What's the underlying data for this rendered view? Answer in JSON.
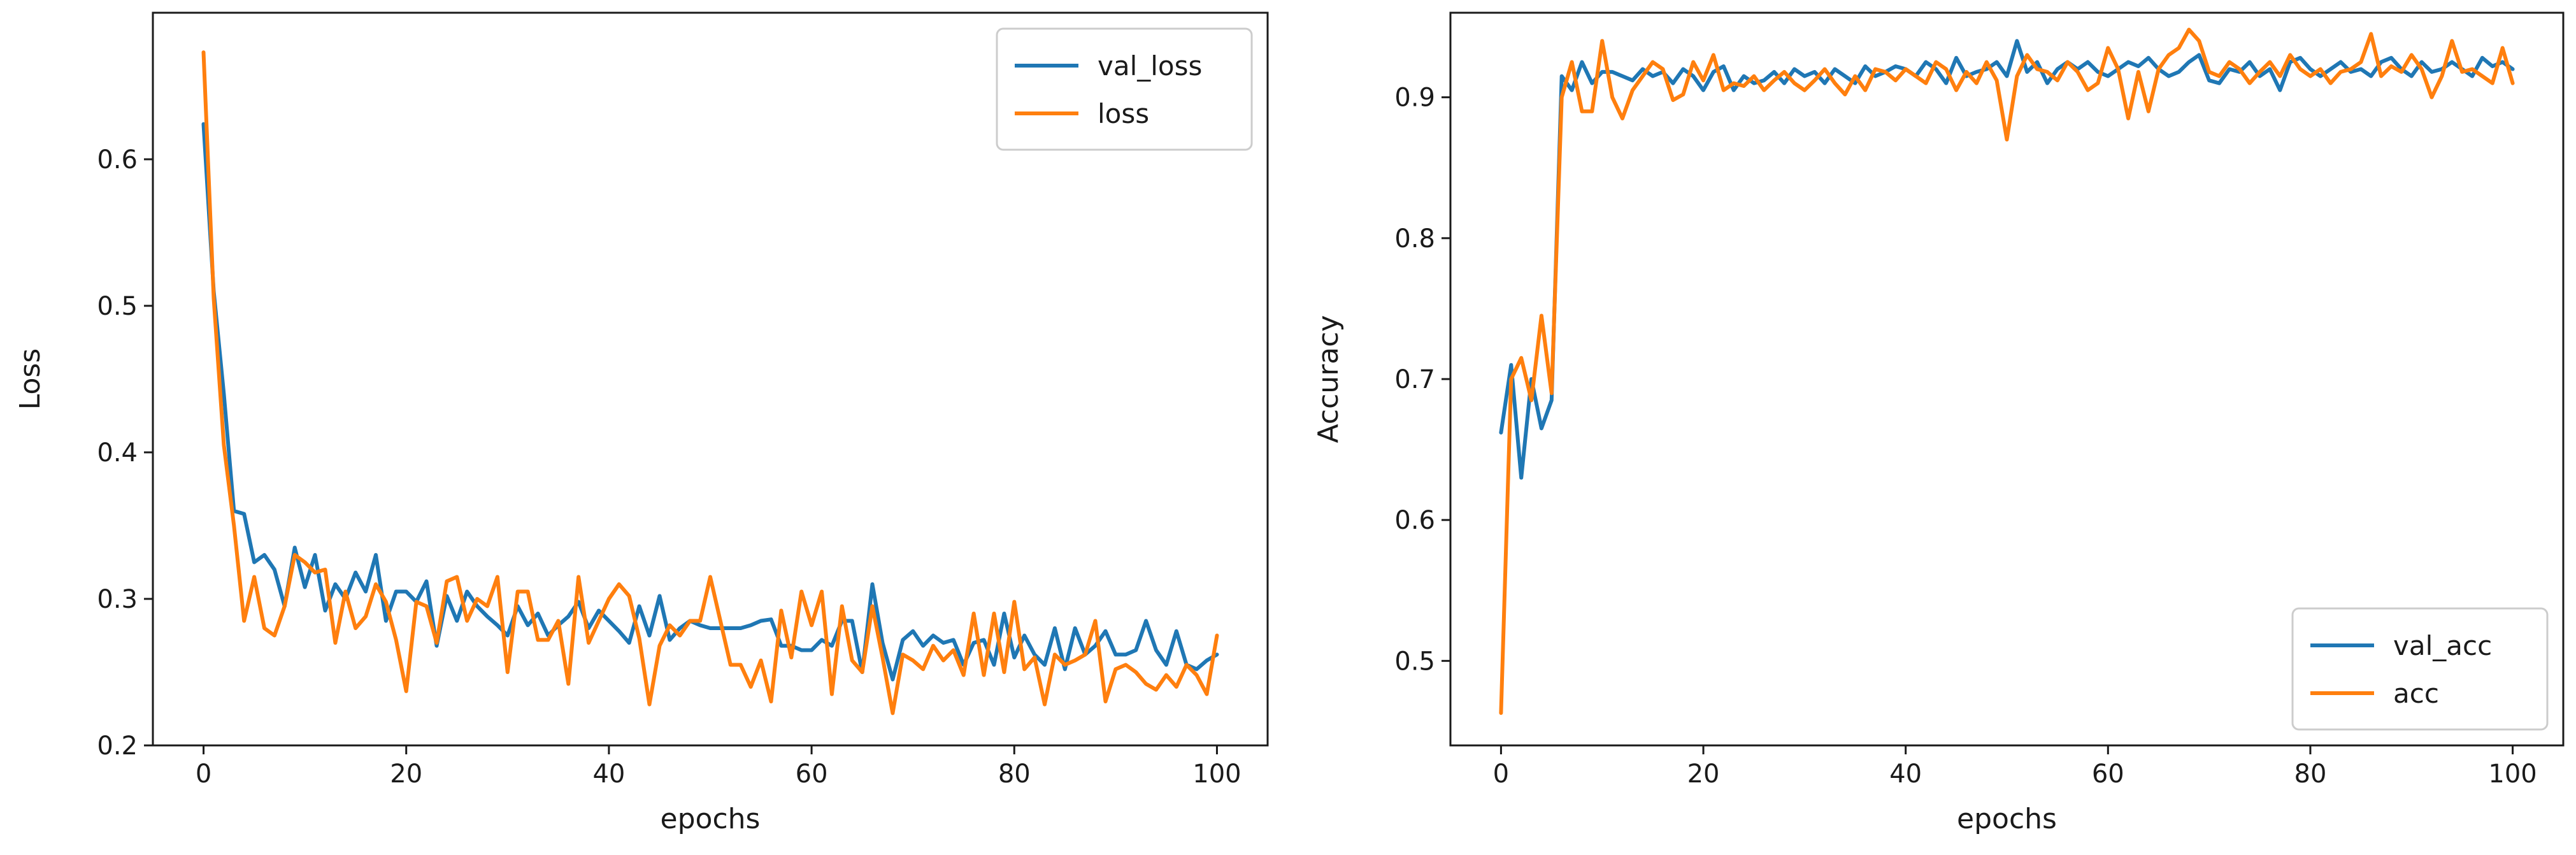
{
  "colors": {
    "blue": "#1f77b4",
    "orange": "#ff7f0e",
    "axis": "#1a1a1a"
  },
  "chart_data": [
    {
      "type": "line",
      "title": "",
      "xlabel": "epochs",
      "ylabel": "Loss",
      "xlim": [
        -5,
        105
      ],
      "ylim": [
        0.2,
        0.7
      ],
      "xticks": [
        0,
        20,
        40,
        60,
        80,
        100
      ],
      "xtick_labels": [
        "0",
        "20",
        "40",
        "60",
        "80",
        "100"
      ],
      "yticks": [
        0.2,
        0.3,
        0.4,
        0.5,
        0.6
      ],
      "ytick_labels": [
        "0.2",
        "0.3",
        "0.4",
        "0.5",
        "0.6"
      ],
      "legend_position": "top-right",
      "series": [
        {
          "name": "val_loss",
          "color": "#1f77b4",
          "values": [
            0.624,
            0.51,
            0.44,
            0.36,
            0.358,
            0.325,
            0.33,
            0.32,
            0.295,
            0.335,
            0.308,
            0.33,
            0.292,
            0.31,
            0.3,
            0.318,
            0.305,
            0.33,
            0.285,
            0.305,
            0.305,
            0.298,
            0.312,
            0.268,
            0.302,
            0.285,
            0.305,
            0.295,
            0.288,
            0.282,
            0.275,
            0.295,
            0.282,
            0.29,
            0.275,
            0.282,
            0.288,
            0.298,
            0.28,
            0.292,
            0.285,
            0.278,
            0.27,
            0.295,
            0.275,
            0.302,
            0.272,
            0.28,
            0.285,
            0.282,
            0.28,
            0.28,
            0.28,
            0.28,
            0.282,
            0.285,
            0.286,
            0.268,
            0.268,
            0.265,
            0.265,
            0.272,
            0.268,
            0.285,
            0.285,
            0.25,
            0.31,
            0.27,
            0.245,
            0.272,
            0.278,
            0.268,
            0.275,
            0.27,
            0.272,
            0.255,
            0.27,
            0.272,
            0.255,
            0.29,
            0.26,
            0.275,
            0.262,
            0.255,
            0.28,
            0.252,
            0.28,
            0.262,
            0.268,
            0.278,
            0.262,
            0.262,
            0.265,
            0.285,
            0.265,
            0.255,
            0.278,
            0.255,
            0.252,
            0.258,
            0.262
          ]
        },
        {
          "name": "loss",
          "color": "#ff7f0e",
          "values": [
            0.673,
            0.505,
            0.405,
            0.35,
            0.285,
            0.315,
            0.28,
            0.275,
            0.295,
            0.33,
            0.325,
            0.318,
            0.32,
            0.27,
            0.305,
            0.28,
            0.288,
            0.31,
            0.298,
            0.272,
            0.237,
            0.298,
            0.295,
            0.27,
            0.312,
            0.315,
            0.285,
            0.3,
            0.295,
            0.315,
            0.25,
            0.305,
            0.305,
            0.272,
            0.272,
            0.285,
            0.242,
            0.315,
            0.27,
            0.285,
            0.3,
            0.31,
            0.302,
            0.273,
            0.228,
            0.268,
            0.282,
            0.275,
            0.285,
            0.285,
            0.315,
            0.285,
            0.255,
            0.255,
            0.24,
            0.258,
            0.23,
            0.292,
            0.26,
            0.305,
            0.282,
            0.305,
            0.235,
            0.295,
            0.258,
            0.25,
            0.295,
            0.26,
            0.222,
            0.262,
            0.258,
            0.252,
            0.268,
            0.258,
            0.265,
            0.248,
            0.29,
            0.248,
            0.29,
            0.25,
            0.298,
            0.252,
            0.26,
            0.228,
            0.262,
            0.255,
            0.258,
            0.262,
            0.285,
            0.23,
            0.252,
            0.255,
            0.25,
            0.242,
            0.238,
            0.248,
            0.24,
            0.255,
            0.248,
            0.235,
            0.275
          ]
        }
      ]
    },
    {
      "type": "line",
      "title": "",
      "xlabel": "epochs",
      "ylabel": "Accuracy",
      "xlim": [
        -5,
        105
      ],
      "ylim": [
        0.44,
        0.96
      ],
      "xticks": [
        0,
        20,
        40,
        60,
        80,
        100
      ],
      "xtick_labels": [
        "0",
        "20",
        "40",
        "60",
        "80",
        "100"
      ],
      "yticks": [
        0.5,
        0.6,
        0.7,
        0.8,
        0.9
      ],
      "ytick_labels": [
        "0.5",
        "0.6",
        "0.7",
        "0.8",
        "0.9"
      ],
      "legend_position": "bottom-right",
      "series": [
        {
          "name": "val_acc",
          "color": "#1f77b4",
          "values": [
            0.662,
            0.71,
            0.63,
            0.7,
            0.665,
            0.685,
            0.915,
            0.905,
            0.925,
            0.91,
            0.918,
            0.918,
            0.915,
            0.912,
            0.92,
            0.915,
            0.918,
            0.91,
            0.92,
            0.915,
            0.905,
            0.918,
            0.922,
            0.905,
            0.915,
            0.91,
            0.912,
            0.918,
            0.91,
            0.92,
            0.915,
            0.918,
            0.91,
            0.92,
            0.915,
            0.91,
            0.922,
            0.915,
            0.918,
            0.922,
            0.92,
            0.915,
            0.925,
            0.92,
            0.91,
            0.928,
            0.915,
            0.918,
            0.92,
            0.925,
            0.915,
            0.94,
            0.918,
            0.925,
            0.91,
            0.92,
            0.925,
            0.92,
            0.925,
            0.918,
            0.915,
            0.92,
            0.925,
            0.922,
            0.928,
            0.92,
            0.915,
            0.918,
            0.925,
            0.93,
            0.912,
            0.91,
            0.92,
            0.918,
            0.925,
            0.915,
            0.92,
            0.905,
            0.925,
            0.928,
            0.92,
            0.915,
            0.92,
            0.925,
            0.918,
            0.92,
            0.915,
            0.925,
            0.928,
            0.92,
            0.915,
            0.925,
            0.918,
            0.92,
            0.925,
            0.92,
            0.915,
            0.928,
            0.922,
            0.925,
            0.92
          ]
        },
        {
          "name": "acc",
          "color": "#ff7f0e",
          "values": [
            0.463,
            0.7,
            0.715,
            0.685,
            0.745,
            0.69,
            0.9,
            0.925,
            0.89,
            0.89,
            0.94,
            0.9,
            0.885,
            0.905,
            0.915,
            0.925,
            0.92,
            0.898,
            0.902,
            0.925,
            0.912,
            0.93,
            0.905,
            0.91,
            0.908,
            0.915,
            0.905,
            0.912,
            0.918,
            0.91,
            0.905,
            0.912,
            0.92,
            0.91,
            0.902,
            0.915,
            0.905,
            0.92,
            0.918,
            0.912,
            0.92,
            0.915,
            0.91,
            0.925,
            0.92,
            0.905,
            0.918,
            0.91,
            0.925,
            0.912,
            0.87,
            0.915,
            0.93,
            0.92,
            0.918,
            0.912,
            0.925,
            0.918,
            0.905,
            0.91,
            0.935,
            0.92,
            0.885,
            0.918,
            0.89,
            0.92,
            0.93,
            0.935,
            0.948,
            0.94,
            0.918,
            0.915,
            0.925,
            0.92,
            0.91,
            0.918,
            0.925,
            0.915,
            0.93,
            0.92,
            0.915,
            0.92,
            0.91,
            0.918,
            0.92,
            0.925,
            0.945,
            0.915,
            0.922,
            0.918,
            0.93,
            0.92,
            0.9,
            0.915,
            0.94,
            0.918,
            0.92,
            0.915,
            0.91,
            0.935,
            0.91
          ]
        }
      ]
    }
  ]
}
